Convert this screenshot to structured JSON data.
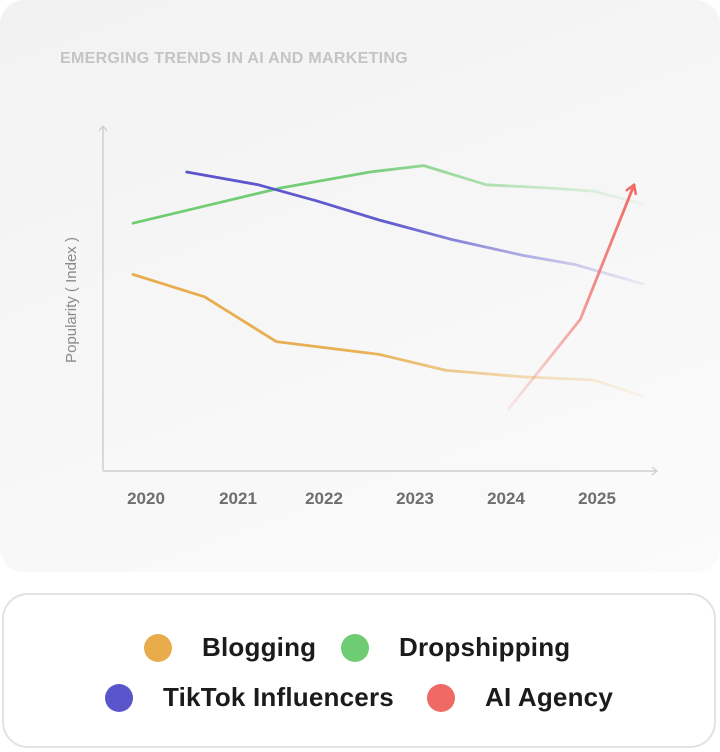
{
  "chart_data": {
    "type": "line",
    "title": "EMERGING TRENDS IN AI AND MARKETING",
    "ylabel": "Popularity ( Index )",
    "xlabel": "",
    "x_ticks": [
      "2020",
      "2021",
      "2022",
      "2023",
      "2024",
      "2025"
    ],
    "xlim": [
      2019.85,
      2025.55
    ],
    "ylim": [
      0,
      100
    ],
    "grid": false,
    "legend_position": "bottom",
    "series": [
      {
        "name": "Blogging",
        "color": "#e8ac4c",
        "x": [
          2019.85,
          2020.65,
          2021.45,
          2022.6,
          2023.35,
          2024.2,
          2025.0,
          2025.55
        ],
        "y": [
          58,
          51,
          37,
          33,
          28,
          26,
          25,
          20
        ]
      },
      {
        "name": "Dropshipping",
        "color": "#6fcc72",
        "x": [
          2019.85,
          2020.6,
          2021.5,
          2022.5,
          2023.1,
          2023.8,
          2024.5,
          2025.0,
          2025.55
        ],
        "y": [
          74,
          79,
          85,
          90,
          92,
          86,
          85,
          84,
          80
        ]
      },
      {
        "name": "TikTok Influencers",
        "color": "#5b55cc",
        "x": [
          2020.45,
          2021.25,
          2021.9,
          2022.6,
          2023.4,
          2024.2,
          2024.8,
          2025.55
        ],
        "y": [
          90,
          86,
          81,
          75,
          69,
          64,
          61,
          55
        ]
      },
      {
        "name": "AI Agency",
        "color": "#f06a65",
        "x": [
          2024.05,
          2024.85,
          2025.45
        ],
        "y": [
          16,
          44,
          86
        ],
        "arrow": true
      }
    ]
  },
  "legend": {
    "items": [
      {
        "label": "Blogging",
        "color": "#e8ac4c"
      },
      {
        "label": "Dropshipping",
        "color": "#6fcc72"
      },
      {
        "label": "TikTok Influencers",
        "color": "#5b55cc"
      },
      {
        "label": "AI Agency",
        "color": "#f06a65"
      }
    ]
  }
}
